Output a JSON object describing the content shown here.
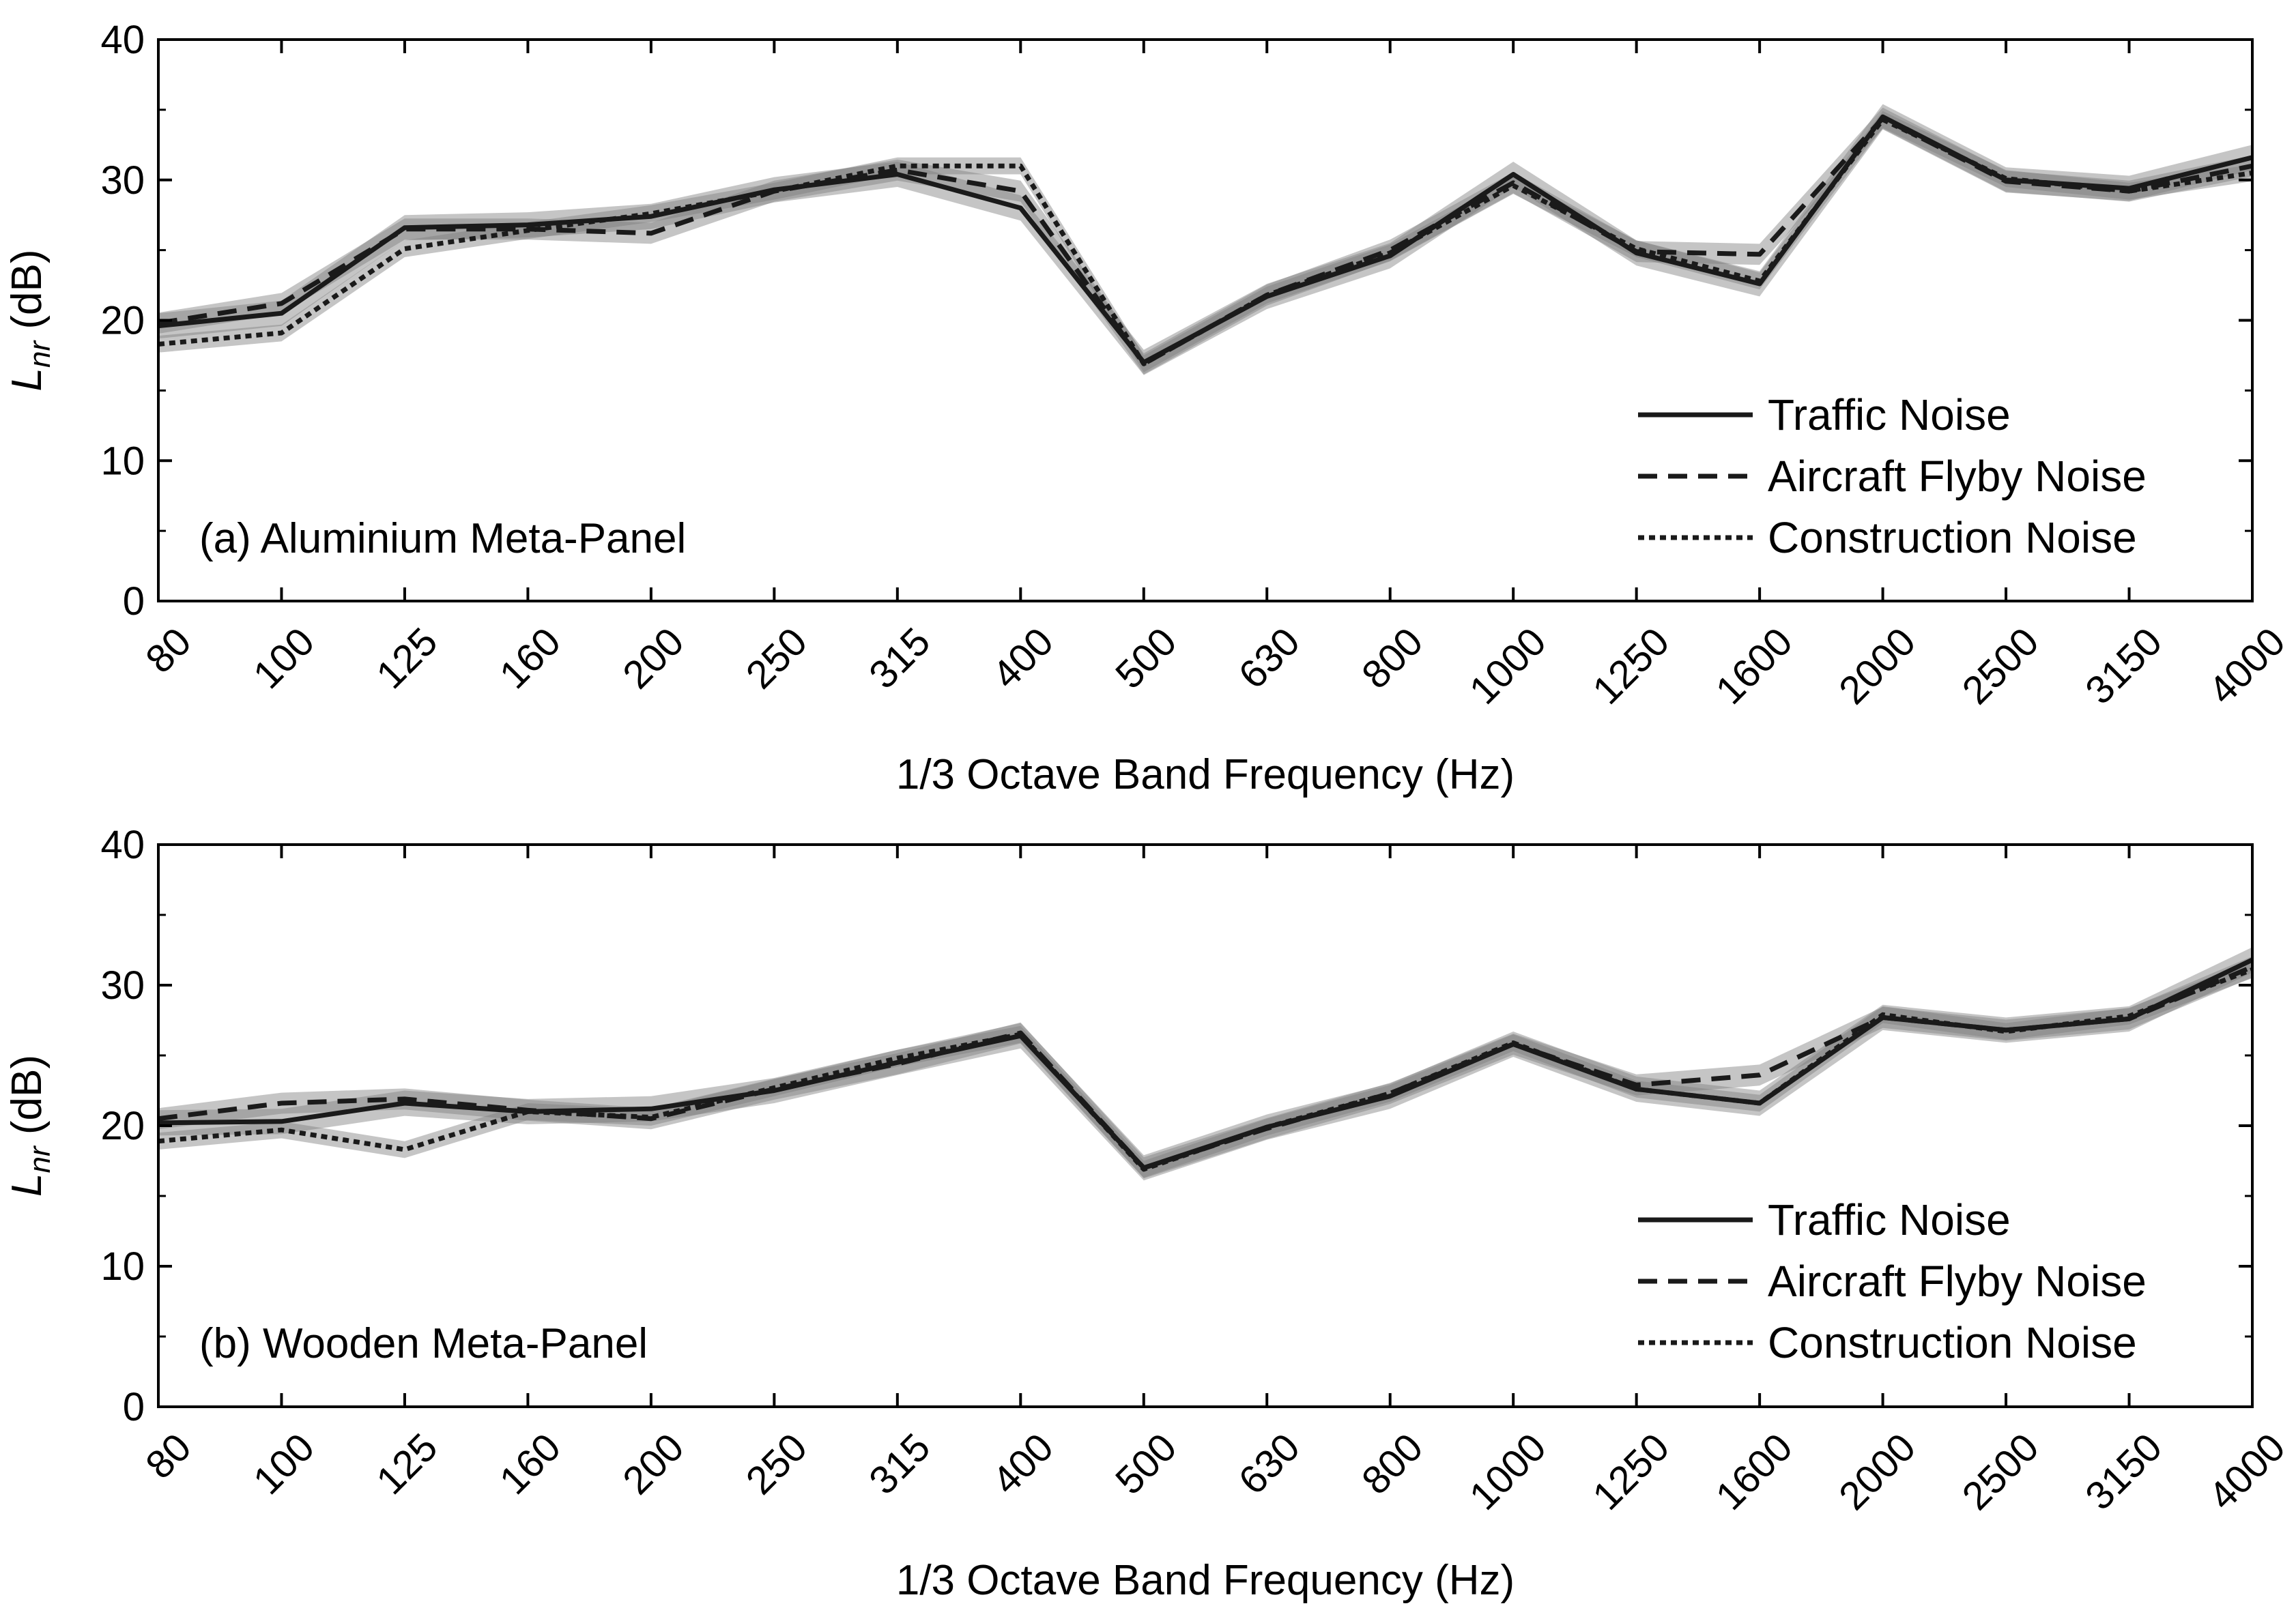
{
  "chart_data": [
    {
      "type": "line",
      "panel_label": "(a) Aluminium Meta-Panel",
      "xlabel": "1/3 Octave Band Frequency (Hz)",
      "ylabel_main": "L",
      "ylabel_sub": "nr",
      "ylabel_unit": " (dB)",
      "ylim": [
        0,
        40
      ],
      "yticks": [
        "0",
        "10",
        "20",
        "30",
        "40"
      ],
      "categories": [
        "80",
        "100",
        "125",
        "160",
        "200",
        "250",
        "315",
        "400",
        "500",
        "630",
        "800",
        "1000",
        "1250",
        "1600",
        "2000",
        "2500",
        "3150",
        "4000"
      ],
      "legend_position": "bottom-right",
      "series": [
        {
          "name": "Traffic Noise",
          "style": "solid",
          "values": [
            19.6,
            20.5,
            26.6,
            26.8,
            27.4,
            29.3,
            30.4,
            28.0,
            17.0,
            21.7,
            24.6,
            30.4,
            24.8,
            22.6,
            34.5,
            30.0,
            29.4,
            31.6
          ]
        },
        {
          "name": "Aircraft Flyby Noise",
          "style": "dashed",
          "values": [
            19.8,
            21.2,
            26.5,
            26.5,
            26.2,
            29.2,
            30.7,
            29.2,
            16.9,
            21.8,
            25.0,
            29.8,
            24.9,
            24.7,
            34.4,
            29.9,
            29.2,
            31.0
          ]
        },
        {
          "name": "Construction Noise",
          "style": "dotted",
          "values": [
            18.3,
            19.1,
            25.1,
            26.4,
            27.6,
            29.2,
            31.0,
            31.0,
            16.9,
            21.8,
            24.8,
            29.6,
            25.1,
            22.8,
            34.3,
            30.1,
            29.2,
            30.5
          ]
        }
      ]
    },
    {
      "type": "line",
      "panel_label": "(b) Wooden Meta-Panel",
      "xlabel": "1/3 Octave Band Frequency (Hz)",
      "ylabel_main": "L",
      "ylabel_sub": "nr",
      "ylabel_unit": " (dB)",
      "ylim": [
        0,
        40
      ],
      "yticks": [
        "0",
        "10",
        "20",
        "30",
        "40"
      ],
      "categories": [
        "80",
        "100",
        "125",
        "160",
        "200",
        "250",
        "315",
        "400",
        "500",
        "630",
        "800",
        "1000",
        "1250",
        "1600",
        "2000",
        "2500",
        "3150",
        "4000"
      ],
      "legend_position": "bottom-right",
      "series": [
        {
          "name": "Traffic Noise",
          "style": "solid",
          "values": [
            20.2,
            20.3,
            21.6,
            21.0,
            21.2,
            22.5,
            24.5,
            26.4,
            17.0,
            19.9,
            22.1,
            25.8,
            22.6,
            21.6,
            27.7,
            26.8,
            27.6,
            31.8
          ]
        },
        {
          "name": "Aircraft Flyby Noise",
          "style": "dashed",
          "values": [
            20.5,
            21.6,
            21.9,
            21.1,
            20.5,
            22.6,
            24.4,
            26.6,
            17.0,
            19.8,
            22.3,
            25.8,
            22.9,
            23.6,
            27.7,
            26.8,
            27.6,
            31.3
          ]
        },
        {
          "name": "Construction Noise",
          "style": "dotted",
          "values": [
            18.9,
            19.7,
            18.3,
            21.0,
            20.6,
            22.7,
            24.8,
            26.5,
            16.9,
            19.9,
            22.3,
            25.9,
            22.6,
            21.6,
            27.9,
            26.7,
            27.8,
            31.1
          ]
        }
      ]
    }
  ],
  "style": {
    "line_color": "#1a1a1a",
    "band_color": "#7f7f7f",
    "axis_color": "#000000"
  }
}
